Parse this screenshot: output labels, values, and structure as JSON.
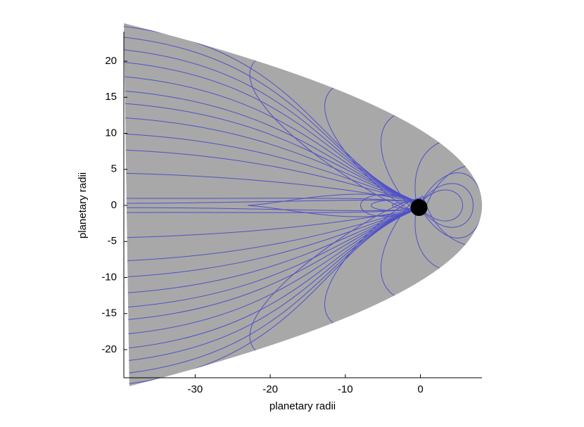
{
  "chart_data": {
    "type": "contour",
    "xlabel": "planetary radii",
    "ylabel": "planetary radii",
    "xlim": [
      -39.5,
      8.2
    ],
    "ylim": [
      -23.9,
      24.1
    ],
    "xticks": [
      -30,
      -20,
      -10,
      0
    ],
    "yticks": [
      -20,
      -15,
      -10,
      -5,
      0,
      5,
      10,
      15,
      20
    ],
    "boundary_color": "#a8a8a8",
    "line_color": "#5050c8",
    "planet_color": "#000000"
  }
}
